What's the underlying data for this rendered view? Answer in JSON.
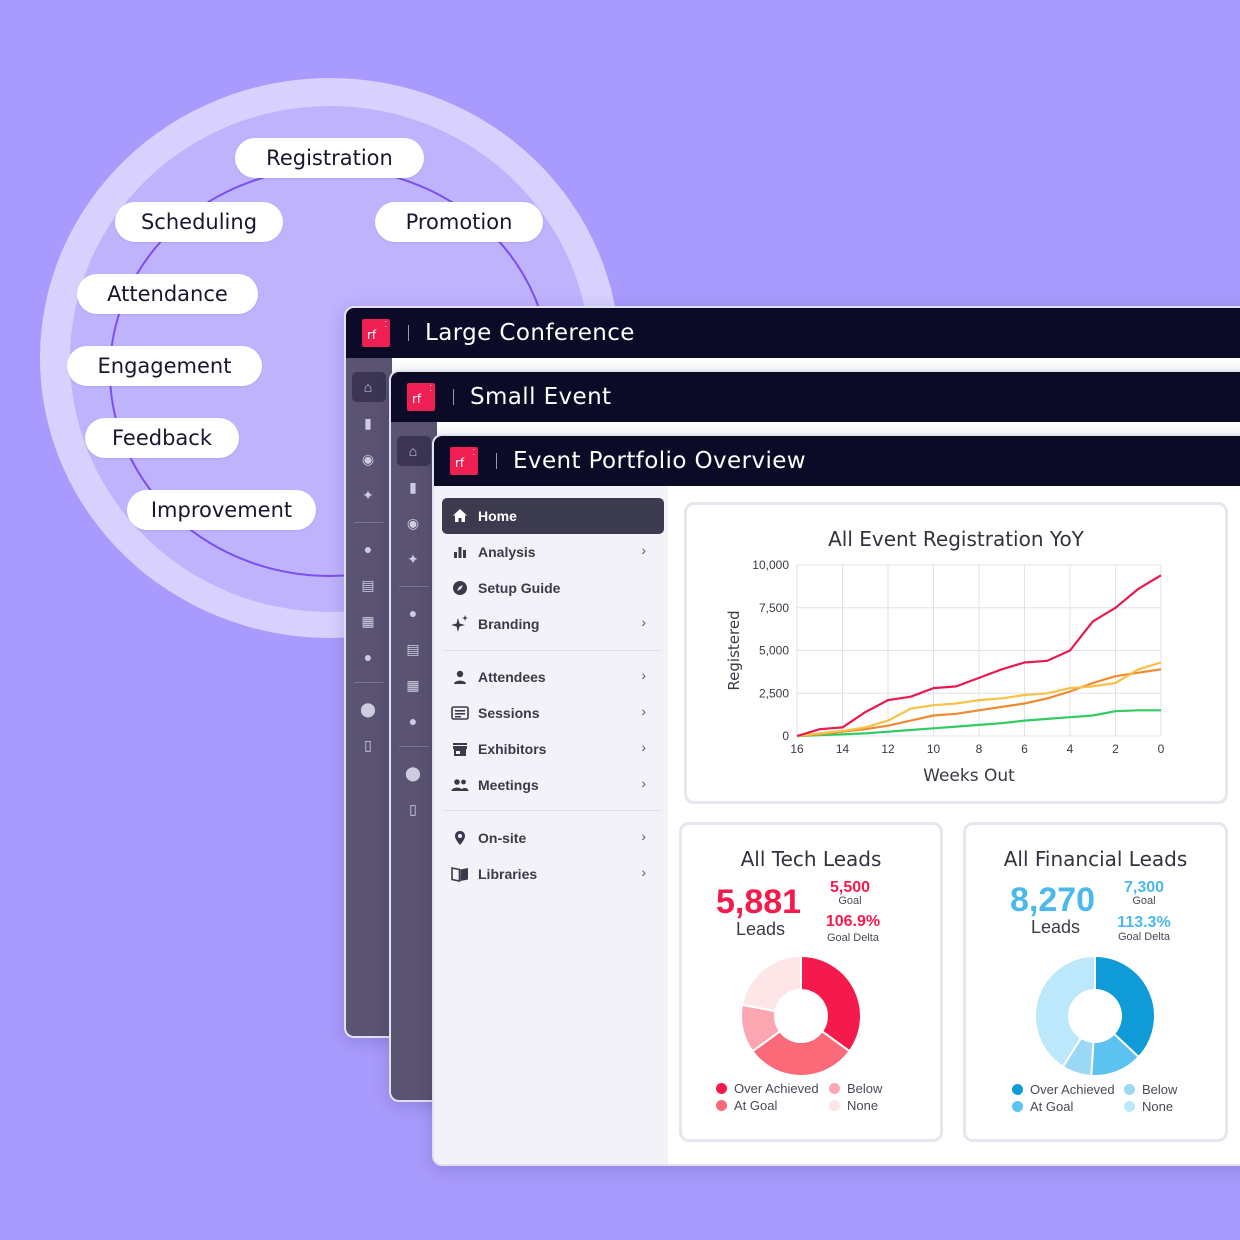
{
  "lifecycle": [
    "Registration",
    "Scheduling",
    "Promotion",
    "Attendance",
    "Engagement",
    "Feedback",
    "Improvement"
  ],
  "windows": {
    "large": {
      "title": "Large Conference"
    },
    "small": {
      "title": "Small Event"
    },
    "main": {
      "title": "Event Portfolio Overview"
    }
  },
  "sidebar": {
    "items": [
      {
        "label": "Home",
        "icon": "home-icon",
        "active": true
      },
      {
        "label": "Analysis",
        "icon": "bar-chart-icon"
      },
      {
        "label": "Setup Guide",
        "icon": "compass-icon"
      },
      {
        "label": "Branding",
        "icon": "sparkle-icon"
      },
      {
        "label": "Attendees",
        "icon": "person-icon"
      },
      {
        "label": "Sessions",
        "icon": "sessions-icon"
      },
      {
        "label": "Exhibitors",
        "icon": "storefront-icon"
      },
      {
        "label": "Meetings",
        "icon": "people-icon"
      },
      {
        "label": "On-site",
        "icon": "location-pin-icon"
      },
      {
        "label": "Libraries",
        "icon": "book-icon"
      }
    ]
  },
  "chart_data": [
    {
      "type": "line",
      "title": "All Event Registration YoY",
      "xlabel": "Weeks Out",
      "ylabel": "Registered",
      "x": [
        16,
        15,
        14,
        13,
        12,
        11,
        10,
        9,
        8,
        7,
        6,
        5,
        4,
        3,
        2,
        1,
        0
      ],
      "x_ticks": [
        16,
        14,
        12,
        10,
        8,
        6,
        4,
        2,
        0
      ],
      "y_ticks": [
        0,
        2500,
        5000,
        7500,
        10000
      ],
      "y_tick_labels": [
        "0",
        "2,500",
        "5,000",
        "7,500",
        "10,000"
      ],
      "ylim": [
        0,
        10000
      ],
      "xlim": [
        16,
        0
      ],
      "grid": true,
      "series": [
        {
          "color": "#e8194d",
          "values": [
            0,
            400,
            500,
            1400,
            2100,
            2300,
            2800,
            2900,
            3400,
            3900,
            4300,
            4400,
            5000,
            6700,
            7500,
            8600,
            9400
          ]
        },
        {
          "color": "#f8c147",
          "values": [
            0,
            150,
            300,
            500,
            900,
            1600,
            1800,
            1900,
            2100,
            2200,
            2400,
            2500,
            2800,
            2900,
            3100,
            3900,
            4300
          ]
        },
        {
          "color": "#f08a30",
          "values": [
            0,
            100,
            250,
            400,
            600,
            900,
            1200,
            1300,
            1500,
            1700,
            1900,
            2200,
            2600,
            3100,
            3500,
            3700,
            3900
          ]
        },
        {
          "color": "#2ecc62",
          "values": [
            0,
            50,
            100,
            150,
            250,
            350,
            450,
            550,
            650,
            750,
            900,
            1000,
            1100,
            1200,
            1450,
            1500,
            1500
          ]
        }
      ]
    },
    {
      "type": "pie",
      "title": "All Tech Leads",
      "kpi": {
        "value": "5,881",
        "label": "Leads",
        "goal": "5,500",
        "goal_label": "Goal",
        "delta": "106.9%",
        "delta_label": "Goal Delta"
      },
      "categories": [
        "Over Achieved",
        "At Goal",
        "Below",
        "None"
      ],
      "values": [
        35,
        30,
        13,
        22
      ],
      "colors": [
        "#f41b4c",
        "#fb6a78",
        "#fba6b1",
        "#fde5e8"
      ]
    },
    {
      "type": "pie",
      "title": "All Financial Leads",
      "kpi": {
        "value": "8,270",
        "label": "Leads",
        "goal": "7,300",
        "goal_label": "Goal",
        "delta": "113.3%",
        "delta_label": "Goal Delta"
      },
      "categories": [
        "Over Achieved",
        "At Goal",
        "Below",
        "None"
      ],
      "values": [
        37,
        14,
        8,
        41
      ],
      "colors": [
        "#0e9bd7",
        "#5cc2ef",
        "#9bd8f6",
        "#bde7fb"
      ]
    }
  ]
}
